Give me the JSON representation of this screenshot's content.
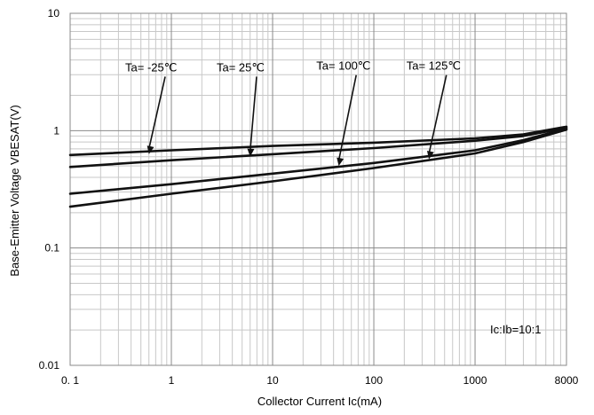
{
  "chart_data": {
    "type": "line",
    "title": "",
    "xlabel": "Collector Current   Ic(mA)",
    "ylabel": "Base-Emitter Voltage   VBESAT(V)",
    "x_scale": "log",
    "y_scale": "log",
    "xlim": [
      0.1,
      8000
    ],
    "ylim": [
      0.01,
      10
    ],
    "grid": true,
    "x_ticks": [
      {
        "value": 0.1,
        "label": "0. 1"
      },
      {
        "value": 1,
        "label": "1"
      },
      {
        "value": 10,
        "label": "10"
      },
      {
        "value": 100,
        "label": "100"
      },
      {
        "value": 1000,
        "label": "1000"
      },
      {
        "value": 8000,
        "label": "8000"
      }
    ],
    "y_ticks": [
      {
        "value": 10,
        "label": "10"
      },
      {
        "value": 1,
        "label": "1"
      },
      {
        "value": 0.1,
        "label": "0.1"
      },
      {
        "value": 0.01,
        "label": "0.01"
      }
    ],
    "condition": "Ic:Ib=10:1",
    "series": [
      {
        "name": "Ta= -25℃",
        "x": [
          0.1,
          1,
          10,
          100,
          1000,
          3000,
          8000
        ],
        "y": [
          0.62,
          0.68,
          0.74,
          0.79,
          0.86,
          0.93,
          1.08
        ]
      },
      {
        "name": "Ta= 25℃",
        "x": [
          0.1,
          1,
          10,
          100,
          1000,
          3000,
          8000
        ],
        "y": [
          0.49,
          0.56,
          0.63,
          0.71,
          0.82,
          0.9,
          1.06
        ]
      },
      {
        "name": "Ta= 100℃",
        "x": [
          0.1,
          1,
          10,
          100,
          1000,
          3000,
          8000
        ],
        "y": [
          0.29,
          0.35,
          0.43,
          0.53,
          0.68,
          0.83,
          1.04
        ]
      },
      {
        "name": "Ta= 125℃",
        "x": [
          0.1,
          1,
          10,
          100,
          1000,
          3000,
          8000
        ],
        "y": [
          0.225,
          0.29,
          0.37,
          0.48,
          0.64,
          0.8,
          1.02
        ]
      }
    ],
    "annotations": [
      {
        "text": "Ta= -25℃",
        "series": 0,
        "label_x": 0.35,
        "label_y": 3.2,
        "arrow_x": 0.6,
        "arrow_y": 0.63
      },
      {
        "text": "Ta= 25℃",
        "series": 1,
        "label_x": 2.8,
        "label_y": 3.2,
        "arrow_x": 6,
        "arrow_y": 0.6
      },
      {
        "text": "Ta= 100℃",
        "series": 2,
        "label_x": 27,
        "label_y": 3.3,
        "arrow_x": 45,
        "arrow_y": 0.5
      },
      {
        "text": "Ta= 125℃",
        "series": 3,
        "label_x": 210,
        "label_y": 3.3,
        "arrow_x": 350,
        "arrow_y": 0.57
      }
    ]
  }
}
